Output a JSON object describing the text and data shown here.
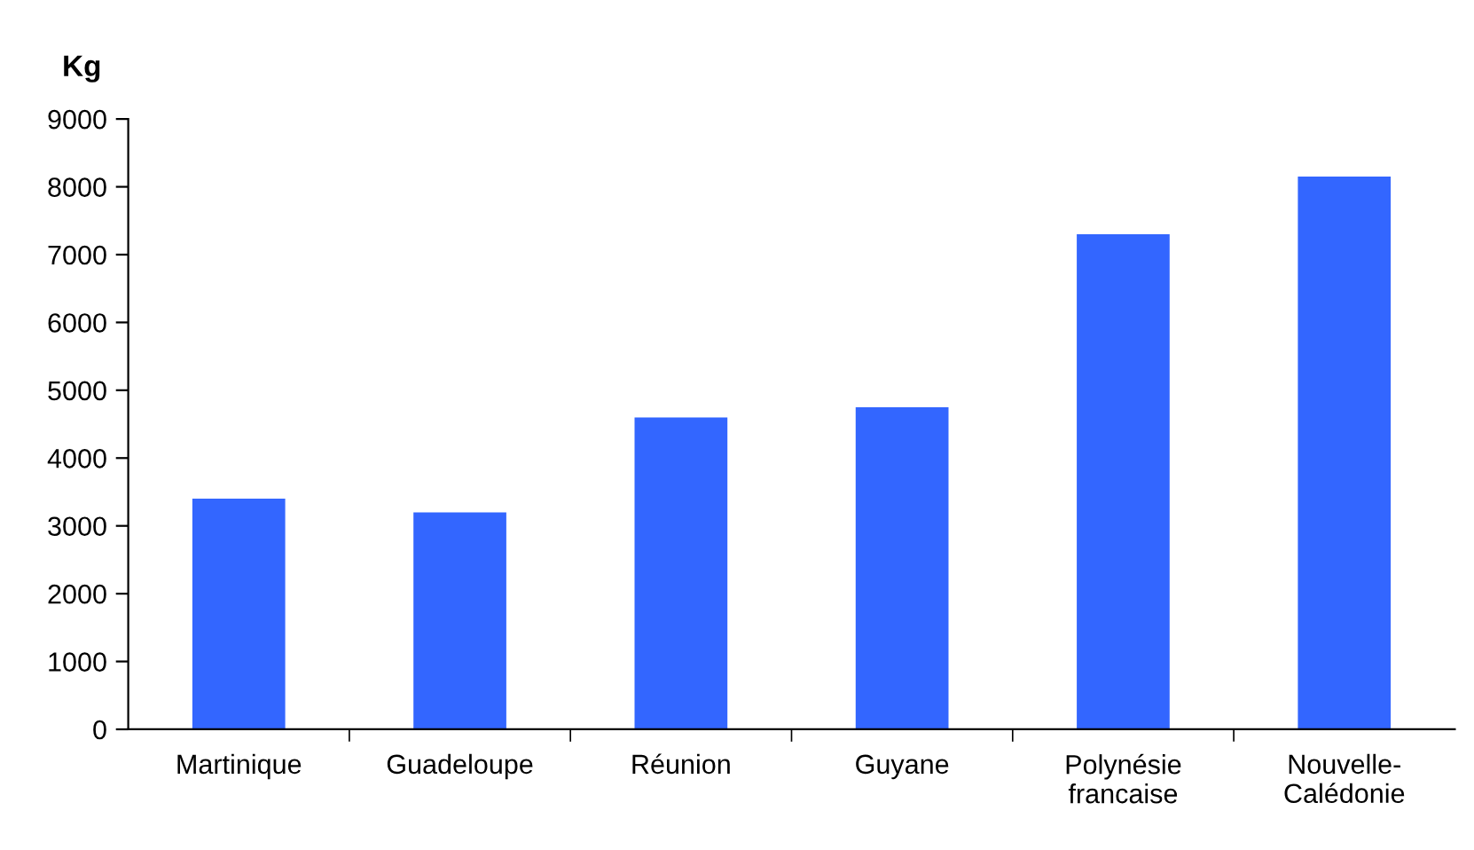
{
  "chart_data": {
    "type": "bar",
    "ylabel": "Kg",
    "categories": [
      "Martinique",
      "Guadeloupe",
      "Réunion",
      "Guyane",
      "Polynésie\nfrancaise",
      "Nouvelle-\nCalédonie"
    ],
    "values": [
      3400,
      3200,
      4600,
      4750,
      7300,
      8150
    ],
    "color": "#3366ff",
    "ylim": [
      0,
      9000
    ],
    "yticks": [
      0,
      1000,
      2000,
      3000,
      4000,
      5000,
      6000,
      7000,
      8000,
      9000
    ],
    "grid": false
  }
}
